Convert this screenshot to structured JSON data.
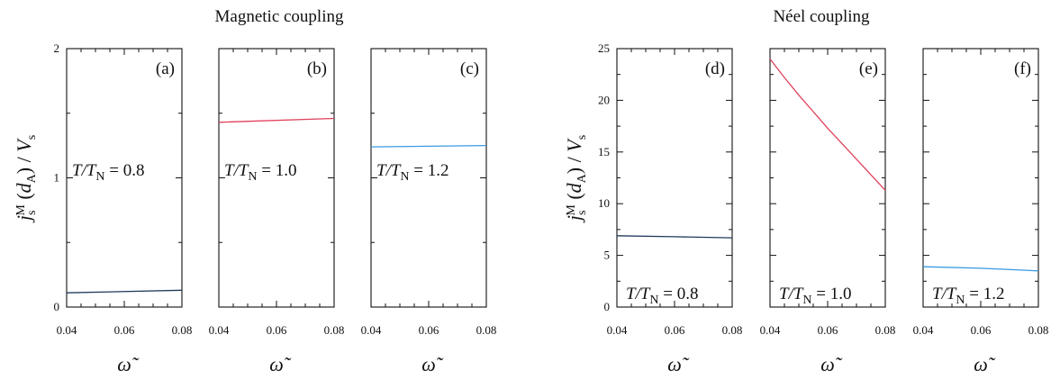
{
  "groups": [
    {
      "title": "Magnetic coupling"
    },
    {
      "title": "Néel coupling"
    }
  ],
  "chart_data": [
    {
      "type": "line",
      "panel": "(a)",
      "group": 0,
      "x": [
        0.04,
        0.08
      ],
      "values": [
        0.11,
        0.13
      ],
      "color": "#1f3a5a",
      "xlim": [
        0.04,
        0.08
      ],
      "ylim": [
        0,
        2
      ],
      "yticks": [
        "0",
        "1",
        "2"
      ],
      "xticks": [
        "0.04",
        "0.06",
        "0.08"
      ],
      "annotation": {
        "prefix": "T/T",
        "sub": "N",
        "value": " = 0.8"
      },
      "xlabel": "ω̃",
      "ylabel": "j_s^M (d_A) / V_s"
    },
    {
      "type": "line",
      "panel": "(b)",
      "group": 0,
      "x": [
        0.04,
        0.08
      ],
      "values": [
        1.43,
        1.46
      ],
      "color": "#e0405a",
      "xlim": [
        0.04,
        0.08
      ],
      "ylim": [
        0,
        2
      ],
      "xticks": [
        "0.04",
        "0.06",
        "0.08"
      ],
      "annotation": {
        "prefix": "T/T",
        "sub": "N",
        "value": " = 1.0"
      },
      "xlabel": "ω̃"
    },
    {
      "type": "line",
      "panel": "(c)",
      "group": 0,
      "x": [
        0.04,
        0.08
      ],
      "values": [
        1.24,
        1.25
      ],
      "color": "#3a9ae0",
      "xlim": [
        0.04,
        0.08
      ],
      "ylim": [
        0,
        2
      ],
      "xticks": [
        "0.04",
        "0.06",
        "0.08"
      ],
      "annotation": {
        "prefix": "T/T",
        "sub": "N",
        "value": " = 1.2"
      },
      "xlabel": "ω̃"
    },
    {
      "type": "line",
      "panel": "(d)",
      "group": 1,
      "x": [
        0.04,
        0.06,
        0.08
      ],
      "values": [
        6.9,
        6.8,
        6.7
      ],
      "color": "#1f3a5a",
      "xlim": [
        0.04,
        0.08
      ],
      "ylim": [
        0,
        25
      ],
      "yticks": [
        "0",
        "5",
        "10",
        "15",
        "20",
        "25"
      ],
      "xticks": [
        "0.04",
        "0.06",
        "0.08"
      ],
      "annotation": {
        "prefix": "T/T",
        "sub": "N",
        "value": " = 0.8"
      },
      "xlabel": "ω̃",
      "ylabel": "j_s^M (d_A) / V_s"
    },
    {
      "type": "line",
      "panel": "(e)",
      "group": 1,
      "x": [
        0.04,
        0.045,
        0.05,
        0.055,
        0.06,
        0.065,
        0.07,
        0.075,
        0.08
      ],
      "values": [
        24.0,
        22.2,
        20.5,
        18.9,
        17.3,
        15.8,
        14.3,
        12.8,
        11.3
      ],
      "color": "#e0405a",
      "xlim": [
        0.04,
        0.08
      ],
      "ylim": [
        0,
        25
      ],
      "xticks": [
        "0.04",
        "0.06",
        "0.08"
      ],
      "annotation": {
        "prefix": "T/T",
        "sub": "N",
        "value": " = 1.0"
      },
      "xlabel": "ω̃"
    },
    {
      "type": "line",
      "panel": "(f)",
      "group": 1,
      "x": [
        0.04,
        0.06,
        0.08
      ],
      "values": [
        3.9,
        3.75,
        3.5
      ],
      "color": "#3a9ae0",
      "xlim": [
        0.04,
        0.08
      ],
      "ylim": [
        0,
        25
      ],
      "xticks": [
        "0.04",
        "0.06",
        "0.08"
      ],
      "annotation": {
        "prefix": "T/T",
        "sub": "N",
        "value": " = 1.2"
      },
      "xlabel": "ω̃"
    }
  ]
}
